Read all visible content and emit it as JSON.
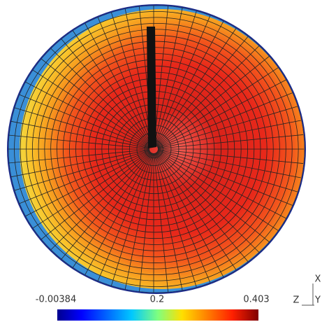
{
  "colorbar": {
    "min_label": "-0.00384",
    "mid_label": "0.2",
    "max_label": "0.403"
  },
  "axes": {
    "x": "X",
    "y": "Y",
    "z": "Z"
  }
}
